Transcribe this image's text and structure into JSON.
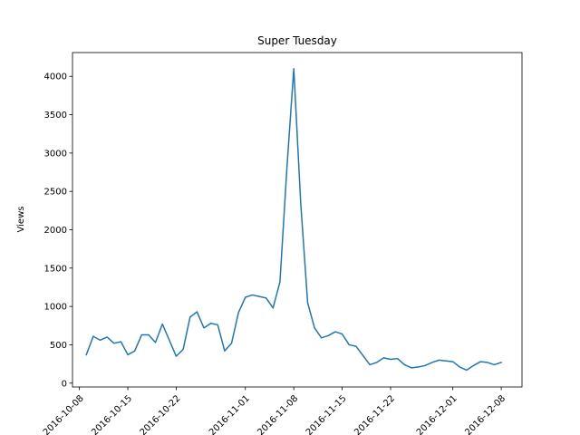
{
  "chart_data": {
    "type": "line",
    "title": "Super Tuesday",
    "xlabel": "",
    "ylabel": "Views",
    "grid": false,
    "x_tick_labels": [
      "2016-10-08",
      "2016-10-15",
      "2016-10-22",
      "2016-11-01",
      "2016-11-08",
      "2016-11-15",
      "2016-11-22",
      "2016-12-01",
      "2016-12-08"
    ],
    "y_ticks": [
      0,
      500,
      1000,
      1500,
      2000,
      2500,
      3000,
      3500,
      4000
    ],
    "ylim": [
      -50,
      4310
    ],
    "xlim": [
      "2016-10-07",
      "2016-12-11"
    ],
    "series": [
      {
        "color": "#1f77b4",
        "x": [
          "2016-10-09",
          "2016-10-10",
          "2016-10-11",
          "2016-10-12",
          "2016-10-13",
          "2016-10-14",
          "2016-10-15",
          "2016-10-16",
          "2016-10-17",
          "2016-10-18",
          "2016-10-19",
          "2016-10-20",
          "2016-10-21",
          "2016-10-22",
          "2016-10-23",
          "2016-10-24",
          "2016-10-25",
          "2016-10-26",
          "2016-10-27",
          "2016-10-28",
          "2016-10-29",
          "2016-10-30",
          "2016-10-31",
          "2016-11-01",
          "2016-11-02",
          "2016-11-03",
          "2016-11-04",
          "2016-11-05",
          "2016-11-06",
          "2016-11-07",
          "2016-11-08",
          "2016-11-09",
          "2016-11-10",
          "2016-11-11",
          "2016-11-12",
          "2016-11-13",
          "2016-11-14",
          "2016-11-15",
          "2016-11-16",
          "2016-11-17",
          "2016-11-18",
          "2016-11-19",
          "2016-11-20",
          "2016-11-21",
          "2016-11-22",
          "2016-11-23",
          "2016-11-24",
          "2016-11-25",
          "2016-11-26",
          "2016-11-27",
          "2016-11-28",
          "2016-11-29",
          "2016-11-30",
          "2016-12-01",
          "2016-12-02",
          "2016-12-03",
          "2016-12-04",
          "2016-12-05",
          "2016-12-06",
          "2016-12-07",
          "2016-12-08"
        ],
        "values": [
          370,
          610,
          560,
          600,
          520,
          540,
          370,
          420,
          630,
          630,
          530,
          770,
          560,
          350,
          440,
          860,
          930,
          720,
          780,
          760,
          420,
          520,
          920,
          1120,
          1150,
          1130,
          1110,
          980,
          1320,
          2800,
          4100,
          2350,
          1050,
          720,
          590,
          620,
          670,
          640,
          500,
          480,
          360,
          240,
          270,
          330,
          310,
          320,
          240,
          200,
          210,
          230,
          270,
          300,
          290,
          280,
          210,
          170,
          230,
          280,
          270,
          240,
          270
        ]
      }
    ]
  }
}
